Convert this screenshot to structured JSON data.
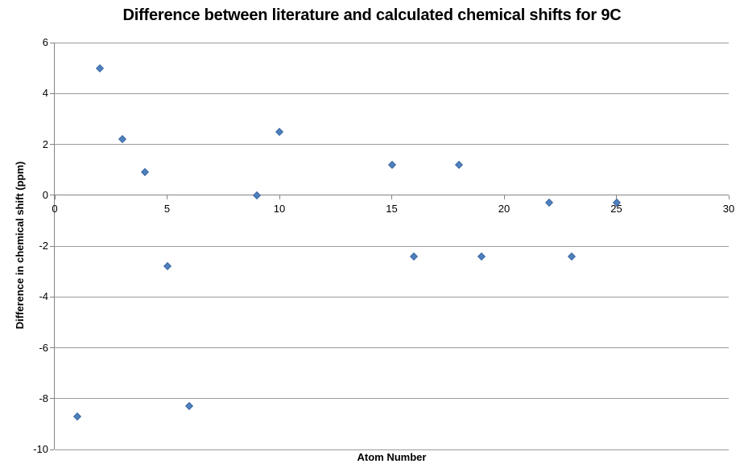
{
  "chart_data": {
    "type": "scatter",
    "title": "Difference between literature and calculated chemical shifts for 9C",
    "xlabel": "Atom Number",
    "ylabel": "Difference in chemical shift (ppm)",
    "xlim": [
      0,
      30
    ],
    "ylim": [
      -10,
      6
    ],
    "x_ticks": [
      0,
      5,
      10,
      15,
      20,
      25,
      30
    ],
    "y_ticks": [
      6,
      4,
      2,
      0,
      -2,
      -4,
      -6,
      -8,
      -10
    ],
    "grid": "horizontal-only",
    "legend": "none",
    "series": [
      {
        "marker": "diamond",
        "color": "#4F81BD",
        "points": [
          {
            "x": 1,
            "y": -8.7
          },
          {
            "x": 2,
            "y": 5.0
          },
          {
            "x": 3,
            "y": 2.2
          },
          {
            "x": 4,
            "y": 0.9
          },
          {
            "x": 5,
            "y": -2.8
          },
          {
            "x": 6,
            "y": -8.3
          },
          {
            "x": 9,
            "y": 0.0
          },
          {
            "x": 10,
            "y": 2.5
          },
          {
            "x": 15,
            "y": 1.2
          },
          {
            "x": 16,
            "y": -2.4
          },
          {
            "x": 18,
            "y": 1.2
          },
          {
            "x": 19,
            "y": -2.4
          },
          {
            "x": 22,
            "y": -0.3
          },
          {
            "x": 23,
            "y": -2.4
          },
          {
            "x": 25,
            "y": -0.3
          }
        ]
      }
    ]
  },
  "colors": {
    "marker_fill": "#4F81BD",
    "marker_border": "#3A67A3",
    "gridline": "#9a9a9a",
    "axis": "#848484",
    "text": "#000000",
    "background": "#ffffff"
  }
}
